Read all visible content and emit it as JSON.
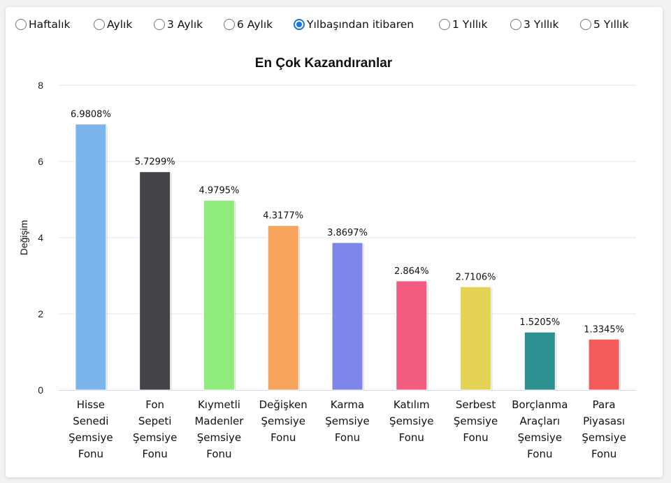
{
  "filters": {
    "options": [
      "Haftalık",
      "Aylık",
      "3 Aylık",
      "6 Aylık",
      "Yılbaşından itibaren",
      "1 Yıllık",
      "3 Yıllık",
      "5 Yıllık"
    ],
    "selected": "Yılbaşından itibaren"
  },
  "chart_data": {
    "type": "bar",
    "title": "En Çok Kazandıranlar",
    "xlabel": "",
    "ylabel": "Değişim",
    "ylim": [
      0,
      8
    ],
    "yticks": [
      0,
      2,
      4,
      6,
      8
    ],
    "grid": true,
    "categories": [
      [
        "Hisse",
        "Senedi",
        "Şemsiye",
        "Fonu"
      ],
      [
        "Fon",
        "Sepeti",
        "Şemsiye",
        "Fonu"
      ],
      [
        "Kıymetli",
        "Madenler",
        "Şemsiye",
        "Fonu"
      ],
      [
        "Değişken",
        "Şemsiye",
        "Fonu"
      ],
      [
        "Karma",
        "Şemsiye",
        "Fonu"
      ],
      [
        "Katılım",
        "Şemsiye",
        "Fonu"
      ],
      [
        "Serbest",
        "Şemsiye",
        "Fonu"
      ],
      [
        "Borçlanma",
        "Araçları",
        "Şemsiye",
        "Fonu"
      ],
      [
        "Para",
        "Piyasası",
        "Şemsiye",
        "Fonu"
      ]
    ],
    "values": [
      6.9808,
      5.7299,
      4.9795,
      4.3177,
      3.8697,
      2.864,
      2.7106,
      1.5205,
      1.3345
    ],
    "labels": [
      "6.9808%",
      "5.7299%",
      "4.9795%",
      "4.3177%",
      "3.8697%",
      "2.864%",
      "2.7106%",
      "1.5205%",
      "1.3345%"
    ],
    "colors": [
      "#7cb5ec",
      "#434348",
      "#90ed7d",
      "#f7a35c",
      "#8085e9",
      "#f15c80",
      "#e4d354",
      "#2b908f",
      "#f45b5b"
    ]
  }
}
